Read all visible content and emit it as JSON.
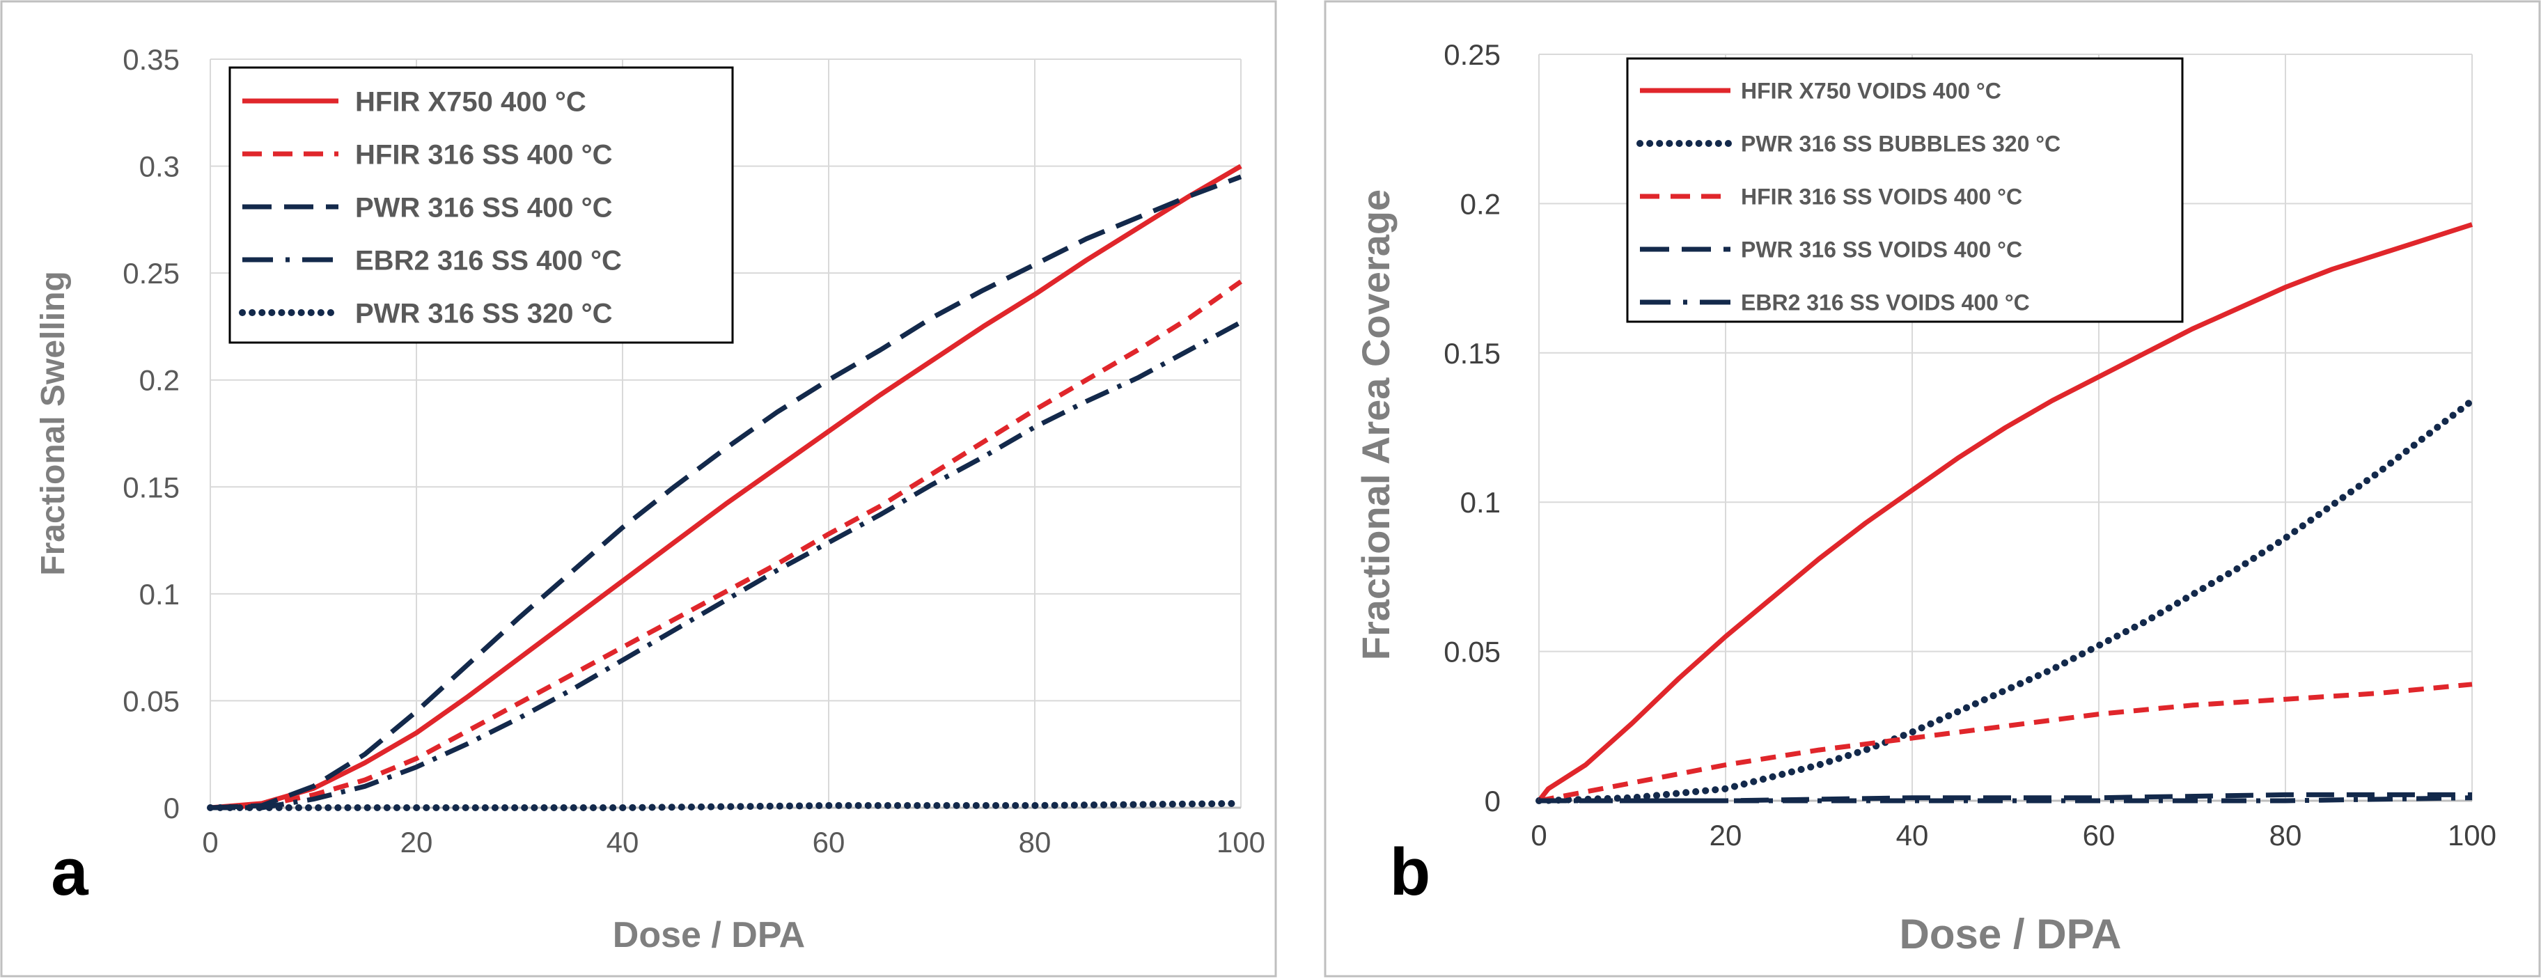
{
  "chart_data": [
    {
      "type": "line",
      "panel_label": "a",
      "title": "",
      "xlabel": "Dose / DPA",
      "ylabel": "Fractional Swelling",
      "xlim": [
        0,
        100
      ],
      "ylim": [
        0,
        0.35
      ],
      "x_ticks": [
        0,
        20,
        40,
        60,
        80,
        100
      ],
      "x_tick_labels": [
        "0",
        "20",
        "40",
        "60",
        "80",
        "100"
      ],
      "y_ticks": [
        0,
        0.05,
        0.1,
        0.15,
        0.2,
        0.25,
        0.3,
        0.35
      ],
      "y_tick_labels": [
        "0",
        "0.05",
        "0.1",
        "0.15",
        "0.2",
        "0.25",
        "0.3",
        "0.35"
      ],
      "grid": true,
      "legend_position": "top-left",
      "series": [
        {
          "name": "HFIR X750 400 °C",
          "color": "#e0262b",
          "style": "solid",
          "x": [
            0,
            5,
            10,
            15,
            20,
            25,
            30,
            35,
            40,
            45,
            50,
            55,
            60,
            65,
            70,
            75,
            80,
            85,
            90,
            95,
            100
          ],
          "values": [
            0,
            0.002,
            0.009,
            0.021,
            0.035,
            0.052,
            0.07,
            0.088,
            0.106,
            0.124,
            0.142,
            0.159,
            0.176,
            0.193,
            0.209,
            0.225,
            0.24,
            0.256,
            0.271,
            0.286,
            0.3
          ]
        },
        {
          "name": "HFIR 316 SS 400 °C",
          "color": "#e0262b",
          "style": "dash",
          "x": [
            0,
            5,
            10,
            15,
            20,
            25,
            30,
            35,
            40,
            45,
            50,
            55,
            60,
            65,
            70,
            75,
            80,
            85,
            90,
            95,
            100
          ],
          "values": [
            0,
            0.001,
            0.006,
            0.013,
            0.023,
            0.036,
            0.049,
            0.062,
            0.075,
            0.088,
            0.101,
            0.114,
            0.128,
            0.141,
            0.156,
            0.171,
            0.186,
            0.2,
            0.214,
            0.229,
            0.246
          ]
        },
        {
          "name": "PWR 316 SS 400 °C",
          "color": "#13294b",
          "style": "longdash",
          "x": [
            0,
            5,
            10,
            15,
            20,
            25,
            30,
            35,
            40,
            45,
            50,
            55,
            60,
            65,
            70,
            75,
            80,
            85,
            90,
            95,
            100
          ],
          "values": [
            0,
            0.001,
            0.01,
            0.025,
            0.045,
            0.067,
            0.089,
            0.11,
            0.131,
            0.15,
            0.168,
            0.185,
            0.2,
            0.214,
            0.229,
            0.242,
            0.254,
            0.266,
            0.276,
            0.286,
            0.295
          ]
        },
        {
          "name": "EBR2 316 SS 400 °C",
          "color": "#13294b",
          "style": "dashdot",
          "x": [
            0,
            5,
            10,
            15,
            20,
            25,
            30,
            35,
            40,
            45,
            50,
            55,
            60,
            65,
            70,
            75,
            80,
            85,
            90,
            95,
            100
          ],
          "values": [
            0,
            0,
            0.004,
            0.01,
            0.019,
            0.03,
            0.042,
            0.055,
            0.069,
            0.083,
            0.097,
            0.111,
            0.124,
            0.137,
            0.151,
            0.164,
            0.178,
            0.19,
            0.201,
            0.214,
            0.227
          ]
        },
        {
          "name": "PWR 316 SS 320 °C",
          "color": "#13294b",
          "style": "dot",
          "x": [
            0,
            20,
            40,
            60,
            80,
            100
          ],
          "values": [
            0,
            0,
            0,
            0.001,
            0.001,
            0.002
          ]
        }
      ]
    },
    {
      "type": "line",
      "panel_label": "b",
      "title": "",
      "xlabel": "Dose / DPA",
      "ylabel": "Fractional Area Coverage",
      "xlim": [
        0,
        100
      ],
      "ylim": [
        0,
        0.25
      ],
      "x_ticks": [
        0,
        20,
        40,
        60,
        80,
        100
      ],
      "x_tick_labels": [
        "0",
        "20",
        "40",
        "60",
        "80",
        "100"
      ],
      "y_ticks": [
        0,
        0.05,
        0.1,
        0.15,
        0.2,
        0.25
      ],
      "y_tick_labels": [
        "0",
        "0.05",
        "0.1",
        "0.15",
        "0.2",
        "0.25"
      ],
      "grid": true,
      "legend_position": "top-left",
      "series": [
        {
          "name": "HFIR X750 VOIDS 400 °C",
          "color": "#e0262b",
          "style": "solid",
          "x": [
            0,
            1,
            5,
            10,
            15,
            20,
            25,
            30,
            35,
            40,
            45,
            50,
            55,
            60,
            65,
            70,
            75,
            80,
            85,
            90,
            95,
            100
          ],
          "values": [
            0,
            0.004,
            0.012,
            0.026,
            0.041,
            0.055,
            0.068,
            0.081,
            0.093,
            0.104,
            0.115,
            0.125,
            0.134,
            0.142,
            0.15,
            0.158,
            0.165,
            0.172,
            0.178,
            0.183,
            0.188,
            0.193
          ]
        },
        {
          "name": "PWR 316 SS BUBBLES 320 °C",
          "color": "#13294b",
          "style": "dot",
          "x": [
            0,
            10,
            20,
            25,
            30,
            35,
            40,
            45,
            50,
            55,
            60,
            65,
            70,
            75,
            80,
            85,
            90,
            95,
            100
          ],
          "values": [
            0,
            0.001,
            0.004,
            0.008,
            0.012,
            0.017,
            0.023,
            0.03,
            0.037,
            0.044,
            0.052,
            0.06,
            0.069,
            0.078,
            0.088,
            0.099,
            0.11,
            0.122,
            0.134
          ]
        },
        {
          "name": "HFIR 316 SS VOIDS 400 °C",
          "color": "#e0262b",
          "style": "dash",
          "x": [
            0,
            10,
            20,
            30,
            40,
            50,
            60,
            70,
            80,
            90,
            100
          ],
          "values": [
            0,
            0.006,
            0.012,
            0.017,
            0.021,
            0.025,
            0.029,
            0.032,
            0.034,
            0.036,
            0.039
          ]
        },
        {
          "name": "PWR 316 SS VOIDS 400 °C",
          "color": "#13294b",
          "style": "longdash",
          "x": [
            0,
            20,
            40,
            60,
            80,
            100
          ],
          "values": [
            0,
            0,
            0.001,
            0.001,
            0.002,
            0.002
          ]
        },
        {
          "name": "EBR2 316 SS VOIDS 400 °C",
          "color": "#13294b",
          "style": "dashdot",
          "x": [
            0,
            20,
            40,
            60,
            80,
            100
          ],
          "values": [
            0,
            0,
            0,
            0,
            0,
            0.001
          ]
        }
      ]
    }
  ]
}
